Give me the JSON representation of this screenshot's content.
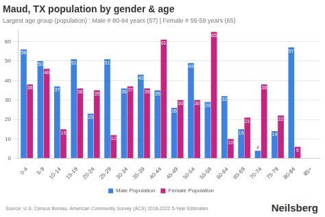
{
  "chart_data": {
    "type": "bar",
    "title": "Maud, TX population by gender & age",
    "subtitle": "Largest age group (population) : Male # 80-84 years (57) | Female # 55-59 years (65)",
    "categories": [
      "0-4",
      "5-9",
      "10-14",
      "15-19",
      "20-24",
      "25-29",
      "30-34",
      "35-39",
      "40-44",
      "45-49",
      "50-54",
      "55-59",
      "60-64",
      "65-69",
      "70-74",
      "75-79",
      "80-84",
      "85+"
    ],
    "series": [
      {
        "name": "Male Population",
        "color": "#3b82e3",
        "values": [
          56,
          50,
          37,
          51,
          23,
          51,
          36,
          43,
          35,
          26,
          49,
          29,
          32,
          15,
          4,
          14,
          57,
          null
        ]
      },
      {
        "name": "Female Population",
        "color": "#c7237f",
        "values": [
          38,
          46,
          15,
          36,
          35,
          12,
          37,
          36,
          61,
          30,
          30,
          65,
          10,
          21,
          38,
          22,
          6,
          null
        ]
      }
    ],
    "ylim": [
      0,
      66
    ],
    "yticks": [
      0,
      10,
      20,
      30,
      40,
      50,
      60
    ],
    "grid": true,
    "legend": "bottom",
    "data_labels": true,
    "annotations": [
      "Source: U.S. Census Bureau, American Community Survey (ACS) 2018-2022 5-Year Estimates",
      "Neilsberg"
    ]
  }
}
